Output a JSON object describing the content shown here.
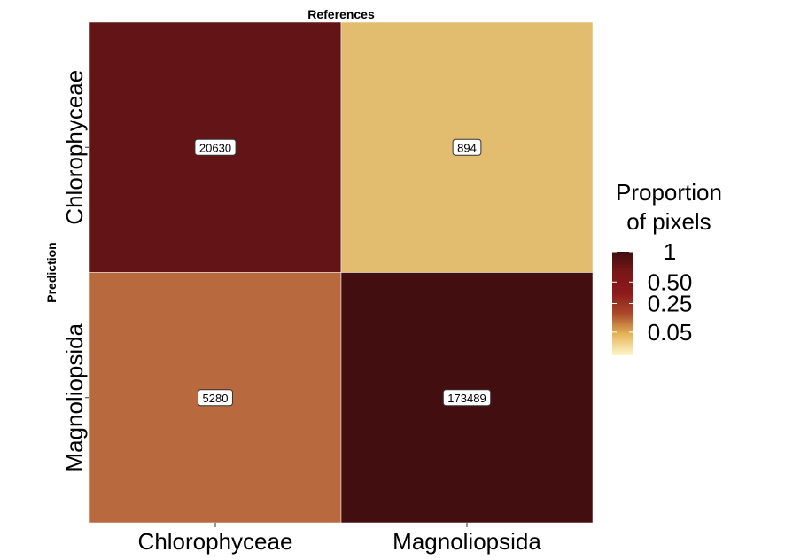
{
  "chart_data": {
    "type": "heatmap",
    "title": "References",
    "xlabel": "",
    "ylabel": "Prediction",
    "x_categories": [
      "Chlorophyceae",
      "Magnoliopsida"
    ],
    "y_categories": [
      "Chlorophyceae",
      "Magnoliopsida"
    ],
    "cells": [
      {
        "x": "Chlorophyceae",
        "y": "Chlorophyceae",
        "value": 20630,
        "label": "20630",
        "proportion": 0.8,
        "color": "#631416"
      },
      {
        "x": "Magnoliopsida",
        "y": "Chlorophyceae",
        "value": 894,
        "label": "894",
        "proportion": 0.005,
        "color": "#e2bd6f"
      },
      {
        "x": "Chlorophyceae",
        "y": "Magnoliopsida",
        "value": 5280,
        "label": "5280",
        "proportion": 0.2,
        "color": "#b86a3e"
      },
      {
        "x": "Magnoliopsida",
        "y": "Magnoliopsida",
        "value": 173489,
        "label": "173489",
        "proportion": 0.995,
        "color": "#430e0f"
      }
    ],
    "legend": {
      "title_lines": [
        "Proportion",
        "of pixels"
      ],
      "ticks": [
        {
          "value": 1,
          "label": "1"
        },
        {
          "value": 0.5,
          "label": "0.50"
        },
        {
          "value": 0.25,
          "label": "0.25"
        },
        {
          "value": 0.05,
          "label": "0.05"
        }
      ],
      "range": [
        0,
        1
      ],
      "position": "right",
      "colors": [
        "#fff6cc",
        "#e6b659",
        "#ab4a2a",
        "#8b1a1a",
        "#7a1717",
        "#3f0d0d"
      ]
    }
  }
}
